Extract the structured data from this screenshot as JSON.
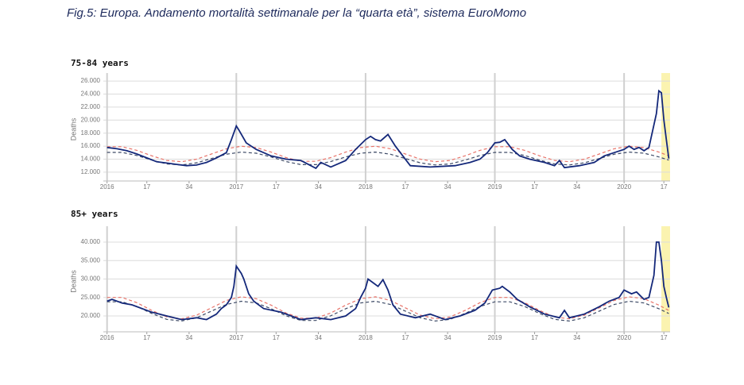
{
  "title": "Fig.5:  Europa. Andamento mortalità settimanale per la “quarta età”, sistema EuroMomo",
  "chart_data": [
    {
      "type": "line",
      "title": "75-84 years",
      "y_label": "Deaths",
      "xlim": [
        -1.5,
        226.5
      ],
      "ylim": [
        10650,
        26500
      ],
      "xticks": [
        {
          "value": 0,
          "label": "2016",
          "grid": true
        },
        {
          "value": 16,
          "label": "17"
        },
        {
          "value": 33,
          "label": "34"
        },
        {
          "value": 52,
          "label": "2017",
          "grid": true
        },
        {
          "value": 68,
          "label": "17"
        },
        {
          "value": 85,
          "label": "34"
        },
        {
          "value": 104,
          "label": "2018",
          "grid": true
        },
        {
          "value": 120,
          "label": "17"
        },
        {
          "value": 137,
          "label": "34"
        },
        {
          "value": 156,
          "label": "2019",
          "grid": true
        },
        {
          "value": 172,
          "label": "17"
        },
        {
          "value": 189,
          "label": "34"
        },
        {
          "value": 208,
          "label": "2020",
          "grid": true
        },
        {
          "value": 224,
          "label": "17"
        }
      ],
      "yticks": [
        {
          "value": 12000,
          "label": "12.000"
        },
        {
          "value": 14000,
          "label": "14.000"
        },
        {
          "value": 16000,
          "label": "16.000"
        },
        {
          "value": 18000,
          "label": "18.000"
        },
        {
          "value": 20000,
          "label": "20.000"
        },
        {
          "value": 22000,
          "label": "22.000"
        },
        {
          "value": 24000,
          "label": "24.000"
        },
        {
          "value": 26000,
          "label": "26.000"
        }
      ],
      "grid": true,
      "highlight_x": [
        223,
        226.5
      ],
      "highlight_color": "#fbf3b0",
      "series": [
        {
          "color": "#e8746a",
          "dash": true,
          "x": [
            0,
            6,
            12,
            18,
            24,
            30,
            36,
            42,
            48,
            54,
            60,
            66,
            72,
            78,
            84,
            90,
            96,
            102,
            108,
            114,
            120,
            126,
            132,
            138,
            144,
            150,
            156,
            162,
            168,
            174,
            180,
            186,
            192,
            198,
            204,
            210,
            216,
            222,
            226
          ],
          "values": [
            15922,
            15922,
            15358,
            14513,
            13812,
            13608,
            14004,
            14800,
            15596,
            15992,
            15788,
            15087,
            14242,
            13678,
            13678,
            14242,
            15087,
            15788,
            15992,
            15596,
            14800,
            14004,
            13608,
            13812,
            14513,
            15358,
            15922,
            15922,
            15358,
            14513,
            13812,
            13608,
            14004,
            14800,
            15596,
            15992,
            15788,
            15087,
            14513
          ]
        },
        {
          "color": "#3d4a66",
          "dash": true,
          "x": [
            0,
            6,
            12,
            18,
            24,
            30,
            36,
            42,
            48,
            54,
            60,
            66,
            72,
            78,
            84,
            90,
            96,
            102,
            108,
            114,
            120,
            126,
            132,
            138,
            144,
            150,
            156,
            162,
            168,
            174,
            180,
            186,
            192,
            198,
            204,
            210,
            216,
            222,
            226
          ],
          "values": [
            15035,
            15035,
            14565,
            13861,
            13277,
            13107,
            13437,
            14100,
            14763,
            15093,
            14923,
            14339,
            13635,
            13165,
            13165,
            13635,
            14339,
            14923,
            15093,
            14763,
            14100,
            13437,
            13107,
            13277,
            13861,
            14565,
            15035,
            15035,
            14565,
            13861,
            13277,
            13107,
            13437,
            14100,
            14763,
            15093,
            14923,
            14339,
            13861
          ]
        },
        {
          "color": "#14287a",
          "dash": false,
          "x": [
            0,
            4,
            8,
            12,
            16,
            20,
            24,
            28,
            32,
            36,
            40,
            44,
            48,
            50,
            52,
            53,
            56,
            60,
            66,
            72,
            78,
            84,
            86,
            90,
            96,
            100,
            104,
            106,
            108,
            110,
            113,
            116,
            119,
            122,
            130,
            140,
            146,
            150,
            153,
            156,
            158,
            160,
            163,
            166,
            170,
            176,
            180,
            182,
            184,
            190,
            196,
            200,
            204,
            208,
            210,
            212,
            214,
            216,
            218,
            221,
            222,
            223,
            224,
            225,
            226
          ],
          "values": [
            15800,
            15600,
            15300,
            14800,
            14200,
            13600,
            13400,
            13200,
            13000,
            13100,
            13500,
            14200,
            15000,
            17000,
            19100,
            18500,
            16500,
            15500,
            14500,
            14000,
            13800,
            12600,
            13500,
            12800,
            13800,
            15500,
            17000,
            17500,
            17000,
            16800,
            17800,
            16000,
            14500,
            13000,
            12800,
            13000,
            13500,
            14000,
            15000,
            16500,
            16600,
            17000,
            15500,
            14500,
            14000,
            13500,
            13000,
            13800,
            12700,
            13000,
            13500,
            14500,
            15000,
            15500,
            16000,
            15500,
            15800,
            15300,
            15800,
            21000,
            24500,
            24200,
            20000,
            17000,
            14100
          ]
        }
      ]
    },
    {
      "type": "line",
      "title": "85+ years",
      "y_label": "Deaths",
      "xlim": [
        -1.5,
        226.5
      ],
      "ylim": [
        15700,
        43000
      ],
      "xticks": [
        {
          "value": 0,
          "label": "2016",
          "grid": true
        },
        {
          "value": 16,
          "label": "17"
        },
        {
          "value": 33,
          "label": "34"
        },
        {
          "value": 52,
          "label": "2017",
          "grid": true
        },
        {
          "value": 68,
          "label": "17"
        },
        {
          "value": 85,
          "label": "34"
        },
        {
          "value": 104,
          "label": "2018",
          "grid": true
        },
        {
          "value": 120,
          "label": "17"
        },
        {
          "value": 137,
          "label": "34"
        },
        {
          "value": 156,
          "label": "2019",
          "grid": true
        },
        {
          "value": 172,
          "label": "17"
        },
        {
          "value": 189,
          "label": "34"
        },
        {
          "value": 208,
          "label": "2020",
          "grid": true
        },
        {
          "value": 224,
          "label": "17"
        }
      ],
      "yticks": [
        {
          "value": 20000,
          "label": "20.000"
        },
        {
          "value": 25000,
          "label": "25.000"
        },
        {
          "value": 30000,
          "label": "30.000"
        },
        {
          "value": 35000,
          "label": "35.000"
        },
        {
          "value": 40000,
          "label": "40.000"
        }
      ],
      "grid": true,
      "highlight_x": [
        223,
        226.5
      ],
      "highlight_color": "#fbf3b0",
      "series": [
        {
          "color": "#e8746a",
          "dash": true,
          "x": [
            0,
            6,
            12,
            18,
            24,
            30,
            36,
            42,
            48,
            54,
            60,
            66,
            72,
            78,
            84,
            90,
            96,
            102,
            108,
            114,
            120,
            126,
            132,
            138,
            144,
            150,
            156,
            162,
            168,
            174,
            180,
            186,
            192,
            198,
            204,
            210,
            216,
            222,
            226
          ],
          "values": [
            25005,
            25005,
            23595,
            21483,
            19731,
            19221,
            20211,
            22200,
            24189,
            25179,
            24669,
            22917,
            20805,
            19395,
            19395,
            20805,
            22917,
            24669,
            25179,
            24189,
            22200,
            20211,
            19221,
            19731,
            21483,
            23595,
            25005,
            25005,
            23595,
            21483,
            19731,
            19221,
            20211,
            22200,
            24189,
            25179,
            24669,
            22917,
            21483
          ]
        },
        {
          "color": "#3d4a66",
          "dash": true,
          "x": [
            0,
            6,
            12,
            18,
            24,
            30,
            36,
            42,
            48,
            54,
            60,
            66,
            72,
            78,
            84,
            90,
            96,
            102,
            108,
            114,
            120,
            126,
            132,
            138,
            144,
            150,
            156,
            162,
            168,
            174,
            180,
            186,
            192,
            198,
            204,
            210,
            216,
            222,
            226
          ],
          "values": [
            23825,
            23825,
            22556,
            20655,
            19078,
            18619,
            19510,
            21300,
            23090,
            23981,
            23522,
            21945,
            20045,
            18776,
            18776,
            20045,
            21945,
            23522,
            23981,
            23090,
            21300,
            19510,
            18619,
            19078,
            20655,
            22556,
            23825,
            23825,
            22556,
            20655,
            19078,
            18619,
            19510,
            21300,
            23090,
            23981,
            23522,
            21945,
            20655
          ]
        },
        {
          "color": "#14287a",
          "dash": false,
          "x": [
            0,
            2,
            6,
            10,
            18,
            24,
            30,
            36,
            40,
            44,
            46,
            48,
            50,
            51,
            52,
            54,
            55,
            57,
            59,
            63,
            70,
            78,
            84,
            90,
            96,
            100,
            102,
            104,
            105,
            107,
            109,
            111,
            113,
            115,
            118,
            124,
            130,
            136,
            142,
            148,
            152,
            155,
            158,
            159,
            162,
            165,
            170,
            176,
            182,
            184,
            186,
            192,
            198,
            202,
            206,
            208,
            211,
            213,
            216,
            218,
            220,
            221,
            222,
            223,
            224,
            225,
            226
          ],
          "values": [
            24000,
            24500,
            23500,
            23000,
            21000,
            20000,
            19000,
            19500,
            19000,
            20500,
            22000,
            23000,
            25000,
            28000,
            33500,
            31500,
            30000,
            26000,
            24000,
            22000,
            21000,
            19000,
            19500,
            19000,
            20000,
            22000,
            25000,
            27500,
            30000,
            29000,
            28000,
            29800,
            27000,
            23000,
            20500,
            19500,
            20500,
            19000,
            20000,
            21500,
            23500,
            27000,
            27500,
            28000,
            26500,
            24500,
            22500,
            20500,
            19500,
            21500,
            19500,
            20500,
            22500,
            24000,
            25000,
            27000,
            26000,
            26500,
            24500,
            25000,
            31000,
            40000,
            40000,
            35000,
            28000,
            25000,
            22300
          ]
        }
      ]
    }
  ]
}
